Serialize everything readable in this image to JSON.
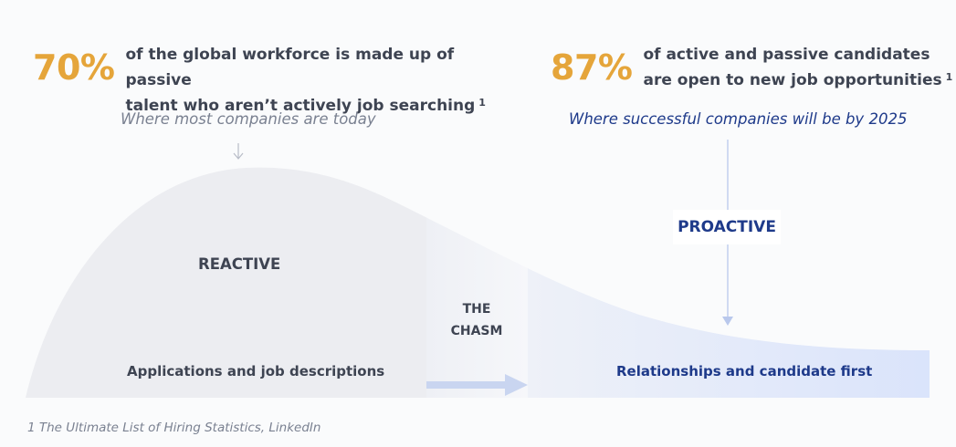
{
  "left_stat": {
    "percent": "70%",
    "line1": "of the global workforce is made up of passive",
    "line2": "talent who aren’t actively job searching",
    "footnote_ref": "1"
  },
  "right_stat": {
    "percent": "87%",
    "line1": "of active and passive candidates",
    "line2": "are open to new job opportunities",
    "footnote_ref": "1"
  },
  "left_note": "Where most companies are today",
  "right_note": "Where successful companies will be by 2025",
  "diagram": {
    "reactive_label": "REACTIVE",
    "chasm_line1": "THE",
    "chasm_line2": "CHASM",
    "proactive_label": "PROACTIVE",
    "reactive_caption": "Applications and job descriptions",
    "proactive_caption": "Relationships and candidate first",
    "colors": {
      "reactive_fill": "#ecedf1",
      "chasm_fill": "#f3f4f8",
      "proactive_fill": "#dce5fb",
      "accent_orange": "#e5a53a",
      "navy": "#1e3a8a"
    }
  },
  "footnote": "1 The Ultimate List of Hiring Statistics, LinkedIn"
}
